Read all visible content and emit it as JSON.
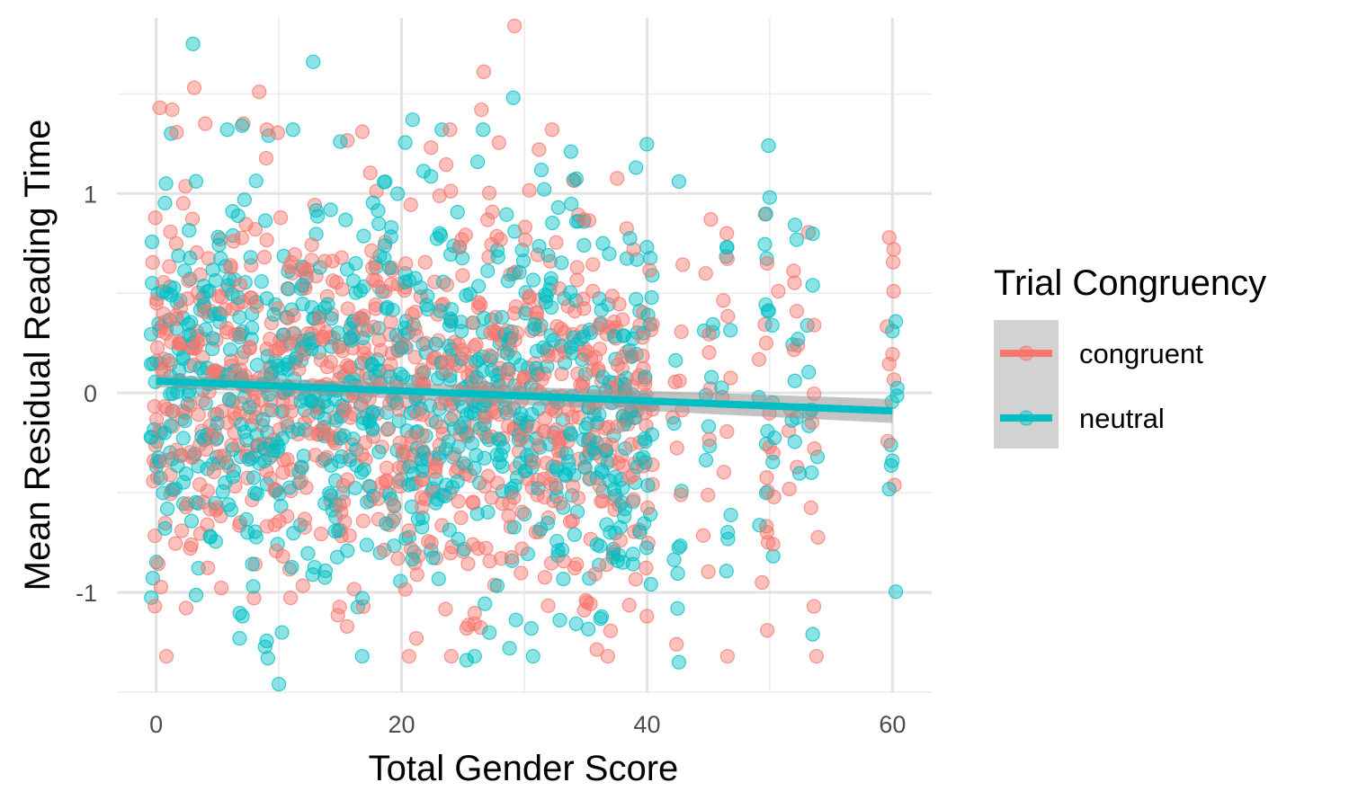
{
  "chart_data": {
    "type": "scatter",
    "title": "",
    "xlabel": "Total Gender Score",
    "ylabel": "Mean Residual Reading Time",
    "xlim": [
      -3.2,
      63.2
    ],
    "ylim": [
      -1.5,
      1.88
    ],
    "x_ticks": [
      0,
      20,
      40,
      60
    ],
    "x_tick_labels": [
      "0",
      "20",
      "40",
      "60"
    ],
    "y_ticks": [
      -1,
      0,
      1
    ],
    "y_tick_labels": [
      "-1",
      "0",
      "1"
    ],
    "grid": true,
    "legend": {
      "title": "Trial Congruency",
      "position": "right",
      "entries": [
        "congruent",
        "neutral"
      ]
    },
    "score_columns": [
      0,
      1,
      2,
      3,
      4,
      5,
      6,
      7,
      8,
      9,
      10,
      11,
      12,
      13,
      14,
      15,
      16,
      17,
      18,
      19,
      20,
      21,
      22,
      23,
      24,
      25,
      26,
      27,
      28,
      29,
      30,
      31,
      32,
      33,
      34,
      35,
      36,
      37,
      38,
      39,
      40,
      42.5,
      45,
      46.5,
      49.5,
      50,
      52,
      53.5,
      60
    ],
    "series": [
      {
        "name": "congruent",
        "color": "#F8766D",
        "trend": {
          "x": [
            0,
            60
          ],
          "y": [
            0.06,
            -0.09
          ],
          "ci_low": [
            0.03,
            -0.15
          ],
          "ci_high": [
            0.09,
            -0.03
          ]
        },
        "highlight_points": [
          {
            "x": 29.2,
            "y": 1.84
          },
          {
            "x": 26.7,
            "y": 1.61
          },
          {
            "x": 3.1,
            "y": 1.53
          },
          {
            "x": 8.4,
            "y": 1.51
          },
          {
            "x": 26.5,
            "y": 1.42
          },
          {
            "x": 1.3,
            "y": 1.42
          },
          {
            "x": 0.3,
            "y": 1.43
          },
          {
            "x": 4.0,
            "y": 1.35
          },
          {
            "x": 7.1,
            "y": 1.35
          },
          {
            "x": 16.8,
            "y": 1.31
          },
          {
            "x": 22.4,
            "y": 1.23
          },
          {
            "x": 31.2,
            "y": 1.22
          },
          {
            "x": 60.1,
            "y": 0.72
          },
          {
            "x": 60.1,
            "y": 0.51
          },
          {
            "x": 52.2,
            "y": 0.41
          },
          {
            "x": 50.7,
            "y": 0.51
          },
          {
            "x": 46.5,
            "y": 0.8
          },
          {
            "x": 45.2,
            "y": 0.87
          },
          {
            "x": 42.4,
            "y": -1.26
          },
          {
            "x": 21.2,
            "y": -1.23
          },
          {
            "x": 25.3,
            "y": -1.18
          },
          {
            "x": 49.8,
            "y": -1.19
          },
          {
            "x": 53.6,
            "y": -1.07
          },
          {
            "x": 35.1,
            "y": -1.05
          }
        ]
      },
      {
        "name": "neutral",
        "color": "#00BFC4",
        "trend": {
          "x": [
            0,
            60
          ],
          "y": [
            0.06,
            -0.09
          ],
          "ci_low": [
            0.03,
            -0.15
          ],
          "ci_high": [
            0.09,
            -0.03
          ]
        },
        "highlight_points": [
          {
            "x": 3.0,
            "y": 1.75
          },
          {
            "x": 12.8,
            "y": 1.66
          },
          {
            "x": 29.1,
            "y": 1.48
          },
          {
            "x": 20.9,
            "y": 1.37
          },
          {
            "x": 7.0,
            "y": 1.34
          },
          {
            "x": 15.0,
            "y": 1.26
          },
          {
            "x": 49.9,
            "y": 1.24
          },
          {
            "x": 33.8,
            "y": 1.21
          },
          {
            "x": 39.1,
            "y": 1.13
          },
          {
            "x": 42.6,
            "y": 1.06
          },
          {
            "x": 0.8,
            "y": 1.05
          },
          {
            "x": 10.0,
            "y": -1.46
          },
          {
            "x": 9.1,
            "y": -1.33
          },
          {
            "x": 25.3,
            "y": -1.34
          },
          {
            "x": 42.6,
            "y": -1.35
          },
          {
            "x": 28.8,
            "y": -1.28
          },
          {
            "x": 6.8,
            "y": -1.23
          },
          {
            "x": 53.5,
            "y": -1.21
          },
          {
            "x": 60.0,
            "y": -0.34
          },
          {
            "x": 60.0,
            "y": 0.31
          },
          {
            "x": 53.5,
            "y": 0.54
          },
          {
            "x": 52.3,
            "y": 0.27
          },
          {
            "x": 46.5,
            "y": 0.73
          },
          {
            "x": 50.0,
            "y": 0.98
          }
        ]
      }
    ]
  }
}
